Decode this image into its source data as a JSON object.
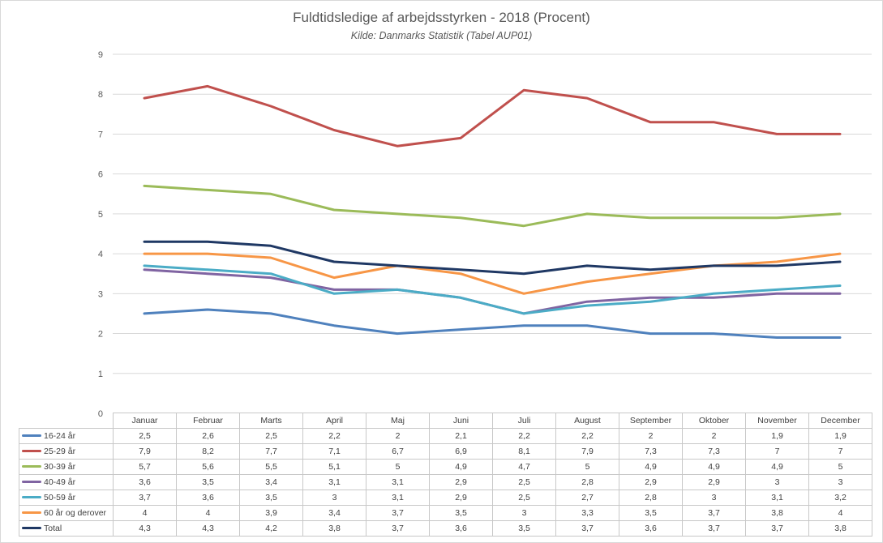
{
  "chart_data": {
    "type": "line",
    "title": "Fuldtidsledige af arbejdsstyrken - 2018 (Procent)",
    "subtitle": "Kilde: Danmarks Statistik (Tabel AUP01)",
    "categories": [
      "Januar",
      "Februar",
      "Marts",
      "April",
      "Maj",
      "Juni",
      "Juli",
      "August",
      "September",
      "Oktober",
      "November",
      "December"
    ],
    "ylim": [
      0,
      9
    ],
    "yticks": [
      "0",
      "1",
      "2",
      "3",
      "4",
      "5",
      "6",
      "7",
      "8",
      "9"
    ],
    "grid": true,
    "legend": "data table below chart",
    "series": [
      {
        "name": "16-24 år",
        "color": "#4f81bd",
        "values": [
          2.5,
          2.6,
          2.5,
          2.2,
          2,
          2.1,
          2.2,
          2.2,
          2,
          2,
          1.9,
          1.9
        ],
        "labels": [
          "2,5",
          "2,6",
          "2,5",
          "2,2",
          "2",
          "2,1",
          "2,2",
          "2,2",
          "2",
          "2",
          "1,9",
          "1,9"
        ]
      },
      {
        "name": "25-29 år",
        "color": "#c0504d",
        "values": [
          7.9,
          8.2,
          7.7,
          7.1,
          6.7,
          6.9,
          8.1,
          7.9,
          7.3,
          7.3,
          7,
          7
        ],
        "labels": [
          "7,9",
          "8,2",
          "7,7",
          "7,1",
          "6,7",
          "6,9",
          "8,1",
          "7,9",
          "7,3",
          "7,3",
          "7",
          "7"
        ]
      },
      {
        "name": "30-39 år",
        "color": "#9bbb59",
        "values": [
          5.7,
          5.6,
          5.5,
          5.1,
          5,
          4.9,
          4.7,
          5,
          4.9,
          4.9,
          4.9,
          5
        ],
        "labels": [
          "5,7",
          "5,6",
          "5,5",
          "5,1",
          "5",
          "4,9",
          "4,7",
          "5",
          "4,9",
          "4,9",
          "4,9",
          "5"
        ]
      },
      {
        "name": "40-49 år",
        "color": "#8064a2",
        "values": [
          3.6,
          3.5,
          3.4,
          3.1,
          3.1,
          2.9,
          2.5,
          2.8,
          2.9,
          2.9,
          3,
          3
        ],
        "labels": [
          "3,6",
          "3,5",
          "3,4",
          "3,1",
          "3,1",
          "2,9",
          "2,5",
          "2,8",
          "2,9",
          "2,9",
          "3",
          "3"
        ]
      },
      {
        "name": "50-59 år",
        "color": "#4bacc6",
        "values": [
          3.7,
          3.6,
          3.5,
          3,
          3.1,
          2.9,
          2.5,
          2.7,
          2.8,
          3,
          3.1,
          3.2
        ],
        "labels": [
          "3,7",
          "3,6",
          "3,5",
          "3",
          "3,1",
          "2,9",
          "2,5",
          "2,7",
          "2,8",
          "3",
          "3,1",
          "3,2"
        ]
      },
      {
        "name": "60 år og derover",
        "color": "#f79646",
        "values": [
          4,
          4,
          3.9,
          3.4,
          3.7,
          3.5,
          3,
          3.3,
          3.5,
          3.7,
          3.8,
          4
        ],
        "labels": [
          "4",
          "4",
          "3,9",
          "3,4",
          "3,7",
          "3,5",
          "3",
          "3,3",
          "3,5",
          "3,7",
          "3,8",
          "4"
        ]
      },
      {
        "name": "Total",
        "color": "#1f3864",
        "values": [
          4.3,
          4.3,
          4.2,
          3.8,
          3.7,
          3.6,
          3.5,
          3.7,
          3.6,
          3.7,
          3.7,
          3.8
        ],
        "labels": [
          "4,3",
          "4,3",
          "4,2",
          "3,8",
          "3,7",
          "3,6",
          "3,5",
          "3,7",
          "3,6",
          "3,7",
          "3,7",
          "3,8"
        ]
      }
    ]
  }
}
